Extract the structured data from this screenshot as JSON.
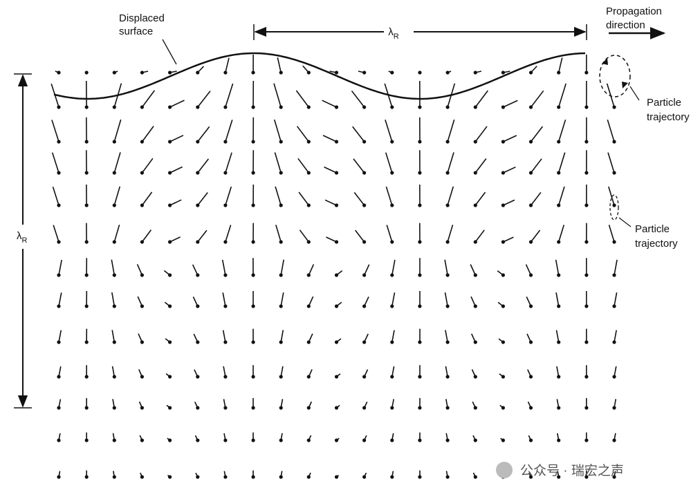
{
  "labels": {
    "displaced_surface": [
      "Displaced",
      "surface"
    ],
    "wavelength_top": {
      "symbol": "λ",
      "subscript": "R"
    },
    "wavelength_left": {
      "symbol": "λ",
      "subscript": "R"
    },
    "propagation": [
      "Propagation",
      "direction"
    ],
    "trajectory_top": [
      "Particle",
      "trajectory"
    ],
    "trajectory_bottom": [
      "Particle",
      "trajectory"
    ],
    "watermark": "公众号 · 瑞宏之声"
  }
}
